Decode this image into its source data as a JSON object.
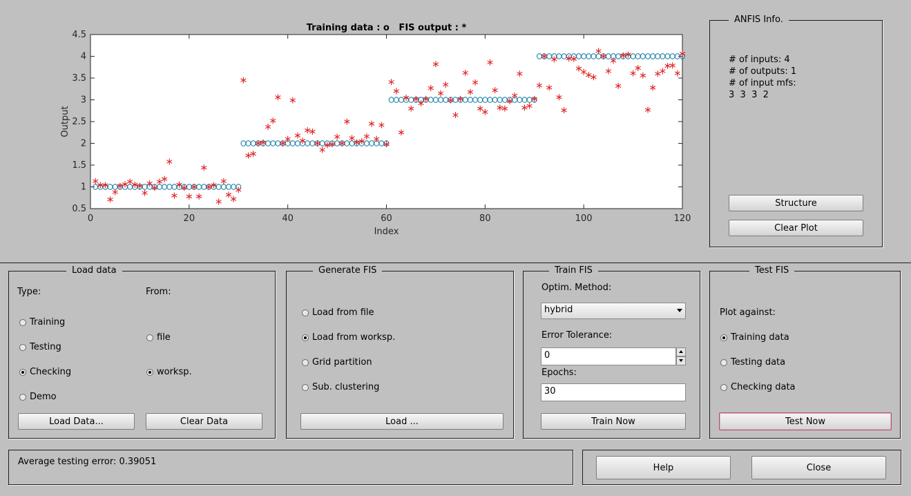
{
  "chart_data": {
    "type": "scatter",
    "title": "Training data : o   FIS output : *",
    "xlabel": "Index",
    "ylabel": "Output",
    "xlim": [
      0,
      120
    ],
    "ylim": [
      0.5,
      4.5
    ],
    "xticks": [
      "0",
      "20",
      "40",
      "60",
      "80",
      "100",
      "120"
    ],
    "yticks": [
      "0.5",
      "1",
      "1.5",
      "2",
      "2.5",
      "3",
      "3.5",
      "4",
      "4.5"
    ],
    "series": [
      {
        "name": "Training data",
        "marker": "o",
        "color": "#1a7fa8",
        "x": [
          1,
          2,
          3,
          4,
          5,
          6,
          7,
          8,
          9,
          10,
          11,
          12,
          13,
          14,
          15,
          16,
          17,
          18,
          19,
          20,
          21,
          22,
          23,
          24,
          25,
          26,
          27,
          28,
          29,
          30,
          31,
          32,
          33,
          34,
          35,
          36,
          37,
          38,
          39,
          40,
          41,
          42,
          43,
          44,
          45,
          46,
          47,
          48,
          49,
          50,
          51,
          52,
          53,
          54,
          55,
          56,
          57,
          58,
          59,
          60,
          61,
          62,
          63,
          64,
          65,
          66,
          67,
          68,
          69,
          70,
          71,
          72,
          73,
          74,
          75,
          76,
          77,
          78,
          79,
          80,
          81,
          82,
          83,
          84,
          85,
          86,
          87,
          88,
          89,
          90,
          91,
          92,
          93,
          94,
          95,
          96,
          97,
          98,
          99,
          100,
          101,
          102,
          103,
          104,
          105,
          106,
          107,
          108,
          109,
          110,
          111,
          112,
          113,
          114,
          115,
          116,
          117,
          118,
          119,
          120
        ],
        "y": [
          1,
          1,
          1,
          1,
          1,
          1,
          1,
          1,
          1,
          1,
          1,
          1,
          1,
          1,
          1,
          1,
          1,
          1,
          1,
          1,
          1,
          1,
          1,
          1,
          1,
          1,
          1,
          1,
          1,
          1,
          2,
          2,
          2,
          2,
          2,
          2,
          2,
          2,
          2,
          2,
          2,
          2,
          2,
          2,
          2,
          2,
          2,
          2,
          2,
          2,
          2,
          2,
          2,
          2,
          2,
          2,
          2,
          2,
          2,
          2,
          3,
          3,
          3,
          3,
          3,
          3,
          3,
          3,
          3,
          3,
          3,
          3,
          3,
          3,
          3,
          3,
          3,
          3,
          3,
          3,
          3,
          3,
          3,
          3,
          3,
          3,
          3,
          3,
          3,
          3,
          4,
          4,
          4,
          4,
          4,
          4,
          4,
          4,
          4,
          4,
          4,
          4,
          4,
          4,
          4,
          4,
          4,
          4,
          4,
          4,
          4,
          4,
          4,
          4,
          4,
          4,
          4,
          4,
          4,
          4
        ]
      },
      {
        "name": "FIS output",
        "marker": "*",
        "color": "#e02020",
        "x": [
          1,
          2,
          3,
          4,
          5,
          6,
          7,
          8,
          9,
          10,
          11,
          12,
          13,
          14,
          15,
          16,
          17,
          18,
          19,
          20,
          21,
          22,
          23,
          24,
          25,
          26,
          27,
          28,
          29,
          30,
          31,
          32,
          33,
          34,
          35,
          36,
          37,
          38,
          39,
          40,
          41,
          42,
          43,
          44,
          45,
          46,
          47,
          48,
          49,
          50,
          51,
          52,
          53,
          54,
          55,
          56,
          57,
          58,
          59,
          60,
          61,
          62,
          63,
          64,
          65,
          66,
          67,
          68,
          69,
          70,
          71,
          72,
          73,
          74,
          75,
          76,
          77,
          78,
          79,
          80,
          81,
          82,
          83,
          84,
          85,
          86,
          87,
          88,
          89,
          90,
          91,
          92,
          93,
          94,
          95,
          96,
          97,
          98,
          99,
          100,
          101,
          102,
          103,
          104,
          105,
          106,
          107,
          108,
          109,
          110,
          111,
          112,
          113,
          114,
          115,
          116,
          117,
          118,
          119,
          120
        ],
        "y": [
          1.13,
          1.04,
          1.04,
          0.71,
          0.88,
          1.02,
          1.06,
          1.12,
          1.05,
          1.02,
          0.86,
          1.08,
          0.98,
          1.12,
          1.18,
          1.58,
          0.8,
          1.05,
          0.98,
          0.78,
          1.0,
          0.78,
          1.44,
          1.0,
          1.04,
          0.66,
          1.13,
          0.82,
          0.72,
          0.93,
          3.45,
          1.72,
          1.76,
          2.0,
          2.02,
          2.38,
          2.52,
          3.06,
          2.0,
          2.1,
          2.99,
          2.18,
          2.06,
          2.3,
          2.27,
          2.0,
          1.85,
          1.96,
          1.98,
          2.15,
          2.0,
          2.5,
          2.12,
          2.02,
          2.05,
          2.16,
          2.45,
          2.1,
          2.42,
          1.98,
          3.41,
          3.2,
          2.25,
          3.05,
          2.8,
          3.02,
          2.92,
          3.02,
          3.27,
          3.82,
          3.15,
          3.35,
          2.99,
          2.65,
          3.02,
          3.62,
          3.18,
          3.4,
          2.8,
          2.72,
          3.86,
          3.22,
          2.82,
          2.8,
          2.97,
          3.1,
          3.6,
          2.82,
          2.86,
          3.02,
          3.33,
          4.0,
          3.28,
          3.93,
          3.06,
          2.76,
          3.95,
          3.94,
          3.72,
          3.64,
          3.57,
          3.52,
          4.12,
          4.0,
          3.66,
          3.9,
          3.32,
          4.02,
          4.04,
          3.61,
          3.73,
          3.56,
          2.77,
          3.28,
          3.6,
          3.66,
          3.78,
          3.79,
          3.61,
          4.06
        ]
      }
    ]
  },
  "anfis_info": {
    "title": "ANFIS Info.",
    "lines": [
      "# of inputs: 4",
      "# of outputs: 1",
      "# of input mfs:",
      "3  3  3  2"
    ],
    "structure_label": "Structure",
    "clear_plot_label": "Clear Plot"
  },
  "load_data": {
    "title": "Load data",
    "type_label": "Type:",
    "from_label": "From:",
    "types": [
      {
        "label": "Training",
        "selected": false
      },
      {
        "label": "Testing",
        "selected": false
      },
      {
        "label": "Checking",
        "selected": true
      },
      {
        "label": "Demo",
        "selected": false
      }
    ],
    "sources": [
      {
        "label": "file",
        "selected": false
      },
      {
        "label": "worksp.",
        "selected": true
      }
    ],
    "load_button": "Load Data...",
    "clear_button": "Clear Data"
  },
  "generate_fis": {
    "title": "Generate FIS",
    "options": [
      {
        "label": "Load from file",
        "selected": false
      },
      {
        "label": "Load from worksp.",
        "selected": true
      },
      {
        "label": "Grid partition",
        "selected": false
      },
      {
        "label": "Sub. clustering",
        "selected": false
      }
    ],
    "load_button": "Load ..."
  },
  "train_fis": {
    "title": "Train FIS",
    "method_label": "Optim. Method:",
    "method_value": "hybrid",
    "tolerance_label": "Error Tolerance:",
    "tolerance_value": "0",
    "epochs_label": "Epochs:",
    "epochs_value": "30",
    "train_button": "Train Now"
  },
  "test_fis": {
    "title": "Test FIS",
    "plot_against_label": "Plot against:",
    "options": [
      {
        "label": "Training data",
        "selected": true
      },
      {
        "label": "Testing data",
        "selected": false
      },
      {
        "label": "Checking data",
        "selected": false
      }
    ],
    "test_button": "Test Now"
  },
  "status": {
    "message": "Average testing error: 0.39051"
  },
  "footer": {
    "help_label": "Help",
    "close_label": "Close"
  }
}
